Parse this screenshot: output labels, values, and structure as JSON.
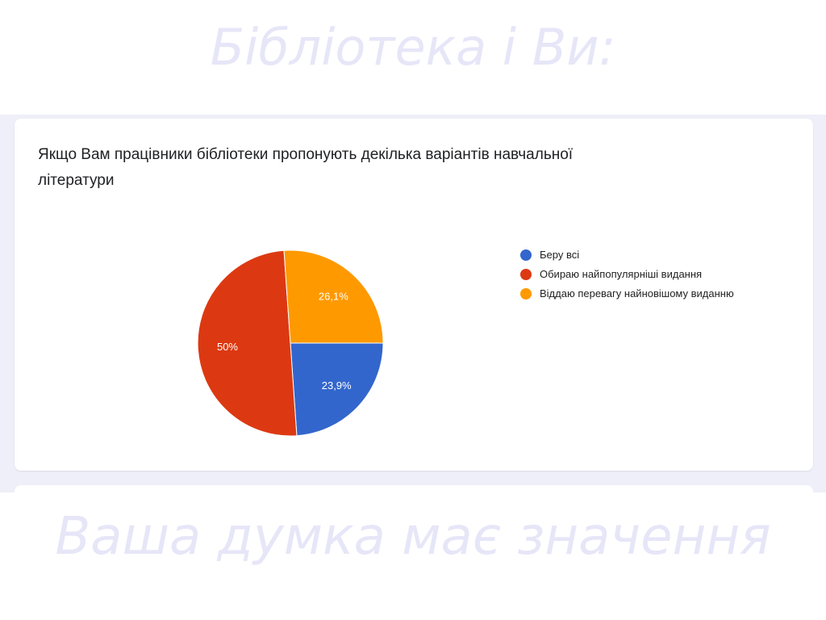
{
  "slide": {
    "title": "Бібліотека і Ви:",
    "footer": "Ваша думка має значення"
  },
  "chart_data": {
    "type": "pie",
    "title": "Якщо Вам працівники бібліотеки пропонують декілька варіантів навчальної літератури",
    "categories": [
      "Беру всі",
      "Обираю найпопулярніші видання",
      "Віддаю перевагу найновішому виданню"
    ],
    "values": [
      23.9,
      50,
      26.1
    ],
    "value_labels": [
      "23,9%",
      "50%",
      "26,1%"
    ],
    "colors": [
      "#3366cc",
      "#dc3912",
      "#ff9900"
    ],
    "legend": "right"
  }
}
